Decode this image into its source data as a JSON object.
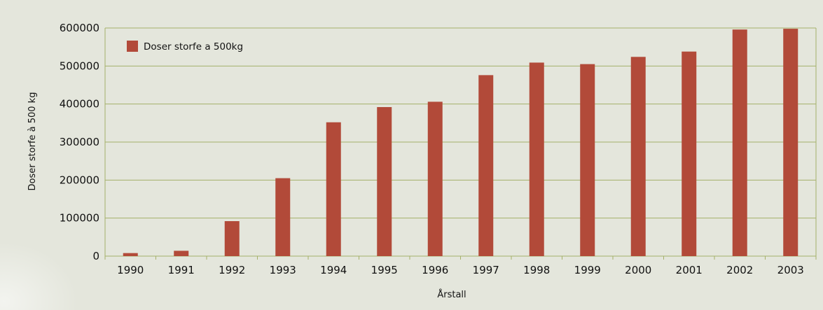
{
  "chart_data": {
    "type": "bar",
    "categories": [
      "1990",
      "1991",
      "1992",
      "1993",
      "1994",
      "1995",
      "1996",
      "1997",
      "1998",
      "1999",
      "2000",
      "2001",
      "2002",
      "2003"
    ],
    "series": [
      {
        "name": "Doser storfe a 500kg",
        "values": [
          8000,
          14000,
          92000,
          205000,
          352000,
          392000,
          406000,
          476000,
          509000,
          505000,
          524000,
          538000,
          596000,
          598000
        ],
        "color": "#b24a39"
      }
    ],
    "xlabel": "Årstall",
    "ylabel": "Doser storfe à 500 kg",
    "ylim": [
      0,
      600000
    ],
    "yticks": [
      0,
      100000,
      200000,
      300000,
      400000,
      500000,
      600000
    ],
    "grid": true,
    "legend_position": "top-left",
    "colors": {
      "background": "#e4e6dc",
      "grid": "#a5b06a",
      "bar": "#b24a39"
    }
  }
}
